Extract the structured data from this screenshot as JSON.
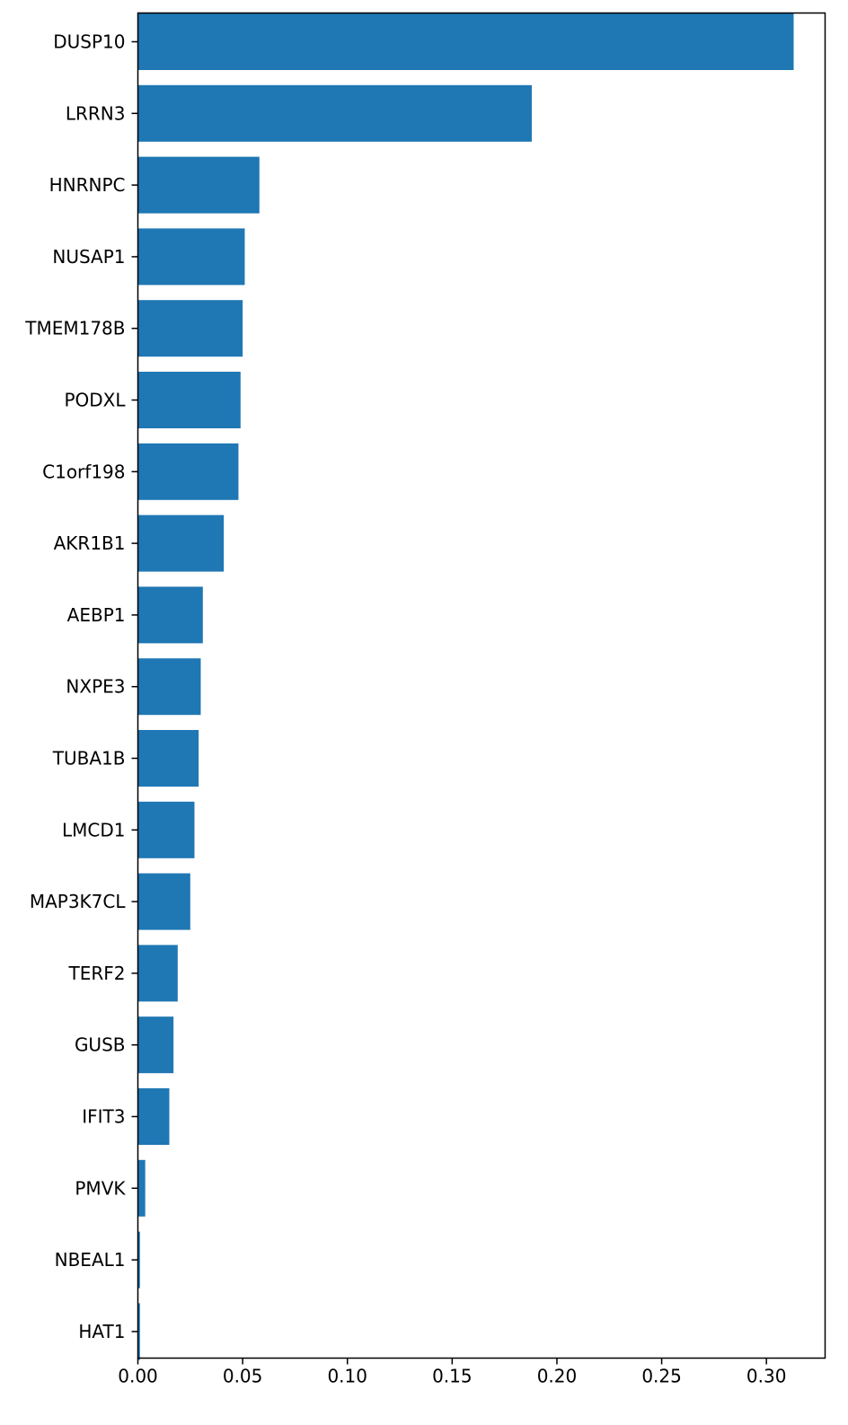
{
  "chart_data": {
    "type": "bar",
    "orientation": "horizontal",
    "title": "",
    "xlabel": "",
    "ylabel": "",
    "xlim": [
      0,
      0.328
    ],
    "grid": false,
    "bar_color": "#1f77b4",
    "categories": [
      "DUSP10",
      "LRRN3",
      "HNRNPC",
      "NUSAP1",
      "TMEM178B",
      "PODXL",
      "C1orf198",
      "AKR1B1",
      "AEBP1",
      "NXPE3",
      "TUBA1B",
      "LMCD1",
      "MAP3K7CL",
      "TERF2",
      "GUSB",
      "IFIT3",
      "PMVK",
      "NBEAL1",
      "HAT1"
    ],
    "values": [
      0.313,
      0.188,
      0.058,
      0.051,
      0.05,
      0.049,
      0.048,
      0.041,
      0.031,
      0.03,
      0.029,
      0.027,
      0.025,
      0.019,
      0.017,
      0.015,
      0.0035,
      0.001,
      0.001
    ],
    "x_ticks": [
      0.0,
      0.05,
      0.1,
      0.15,
      0.2,
      0.25,
      0.3
    ],
    "x_tick_labels": [
      "0.00",
      "0.05",
      "0.10",
      "0.15",
      "0.20",
      "0.25",
      "0.30"
    ]
  }
}
